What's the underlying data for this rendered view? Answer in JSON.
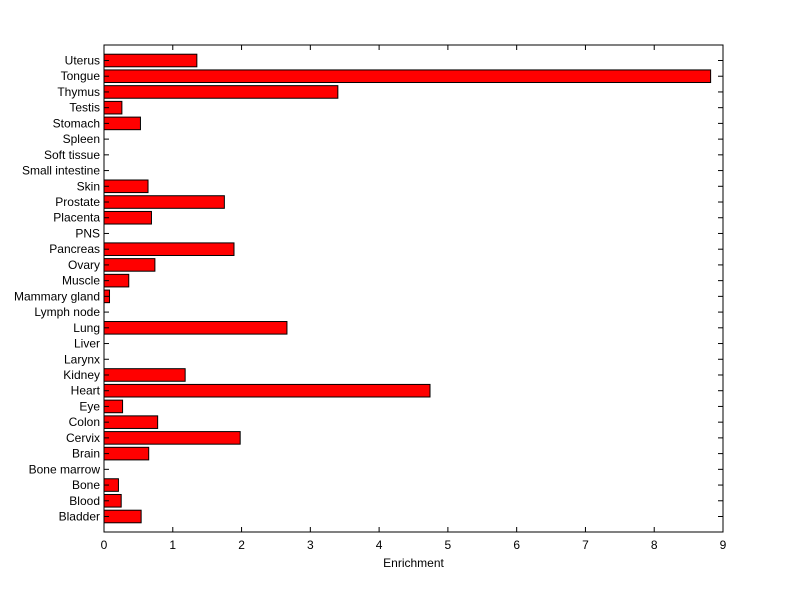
{
  "chart_data": {
    "type": "bar",
    "orientation": "horizontal",
    "title": "",
    "xlabel": "Enrichment",
    "ylabel": "",
    "xlim": [
      0,
      9
    ],
    "xticks": [
      0,
      1,
      2,
      3,
      4,
      5,
      6,
      7,
      8,
      9
    ],
    "grid": false,
    "bar_color": "#ff0000",
    "categories": [
      "Uterus",
      "Tongue",
      "Thymus",
      "Testis",
      "Stomach",
      "Spleen",
      "Soft tissue",
      "Small intestine",
      "Skin",
      "Prostate",
      "Placenta",
      "PNS",
      "Pancreas",
      "Ovary",
      "Muscle",
      "Mammary gland",
      "Lymph node",
      "Lung",
      "Liver",
      "Larynx",
      "Kidney",
      "Heart",
      "Eye",
      "Colon",
      "Cervix",
      "Brain",
      "Bone marrow",
      "Bone",
      "Blood",
      "Bladder"
    ],
    "values": [
      1.35,
      8.82,
      3.4,
      0.26,
      0.53,
      0,
      0,
      0,
      0.64,
      1.75,
      0.69,
      0,
      1.89,
      0.74,
      0.36,
      0.08,
      0,
      2.66,
      0,
      0,
      1.18,
      4.74,
      0.27,
      0.78,
      1.98,
      0.65,
      0,
      0.21,
      0.25,
      0.54
    ]
  }
}
